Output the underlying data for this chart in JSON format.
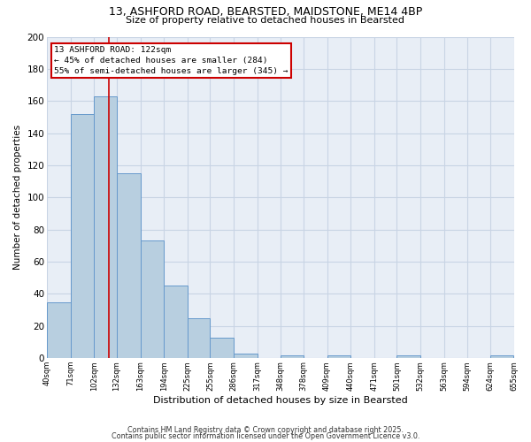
{
  "title": "13, ASHFORD ROAD, BEARSTED, MAIDSTONE, ME14 4BP",
  "subtitle": "Size of property relative to detached houses in Bearsted",
  "xlabel": "Distribution of detached houses by size in Bearsted",
  "ylabel": "Number of detached properties",
  "bin_edges": [
    40,
    71,
    102,
    132,
    163,
    194,
    225,
    255,
    286,
    317,
    348,
    378,
    409,
    440,
    471,
    501,
    532,
    563,
    594,
    624,
    655
  ],
  "bar_heights": [
    35,
    152,
    163,
    115,
    73,
    45,
    25,
    13,
    3,
    0,
    2,
    0,
    2,
    0,
    0,
    2,
    0,
    0,
    0,
    2
  ],
  "bar_color": "#b8cfe0",
  "bar_edgecolor": "#6699cc",
  "grid_color": "#c8d4e4",
  "bg_color": "#e8eef6",
  "property_size": 122,
  "vline_color": "#cc0000",
  "annotation_line1": "13 ASHFORD ROAD: 122sqm",
  "annotation_line2": "← 45% of detached houses are smaller (284)",
  "annotation_line3": "55% of semi-detached houses are larger (345) →",
  "annotation_box_edgecolor": "#cc0000",
  "ylim": [
    0,
    200
  ],
  "yticks": [
    0,
    20,
    40,
    60,
    80,
    100,
    120,
    140,
    160,
    180,
    200
  ],
  "footer1": "Contains HM Land Registry data © Crown copyright and database right 2025.",
  "footer2": "Contains public sector information licensed under the Open Government Licence v3.0."
}
